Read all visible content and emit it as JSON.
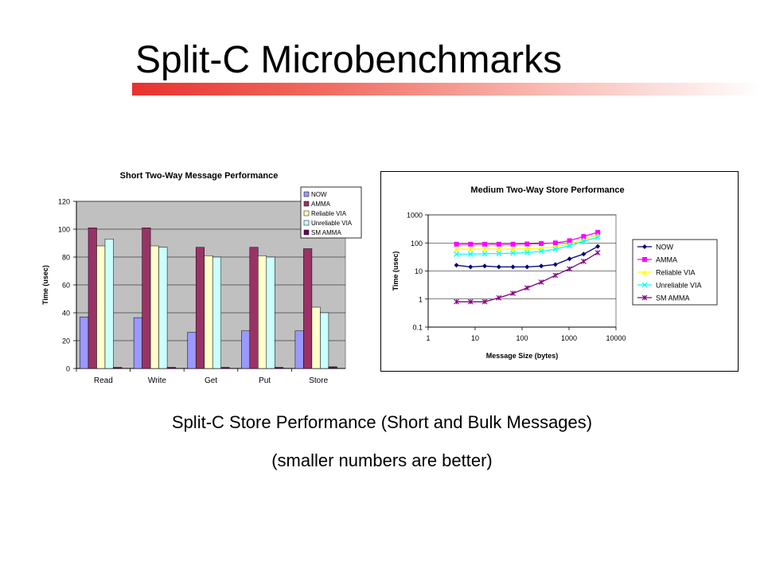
{
  "slide": {
    "title": "Split-C Microbenchmarks",
    "caption_main": "Split-C Store Performance (Short and Bulk Messages)",
    "caption_sub": "(smaller numbers are better)",
    "accent_color": "#e8322f"
  },
  "chart_data": [
    {
      "type": "bar",
      "title": "Short Two-Way Message Performance",
      "xlabel": "",
      "ylabel": "Time (usec)",
      "ylim": [
        0,
        120
      ],
      "yticks": [
        0,
        20,
        40,
        60,
        80,
        100,
        120
      ],
      "grid": true,
      "legend_position": "top-right",
      "categories": [
        "Read",
        "Write",
        "Get",
        "Put",
        "Store"
      ],
      "series": [
        {
          "name": "NOW",
          "color": "#9999ff",
          "values": [
            37,
            36.5,
            26,
            27,
            27
          ]
        },
        {
          "name": "AMMA",
          "color": "#993366",
          "values": [
            101,
            101,
            87,
            87,
            86
          ]
        },
        {
          "name": "Reliable VIA",
          "color": "#ffffcc",
          "values": [
            88,
            88,
            81,
            81,
            44
          ]
        },
        {
          "name": "Unreliable VIA",
          "color": "#ccffff",
          "values": [
            93,
            87,
            80,
            80,
            40
          ]
        },
        {
          "name": "SM AMMA",
          "color": "#660066",
          "values": [
            0.8,
            0.8,
            0.8,
            0.8,
            1.2
          ]
        }
      ]
    },
    {
      "type": "line",
      "title": "Medium Two-Way Store Performance",
      "xlabel": "Message Size (bytes)",
      "ylabel": "Time (usec)",
      "xscale": "log",
      "yscale": "log",
      "xlim": [
        1,
        10000
      ],
      "ylim": [
        0.1,
        1000
      ],
      "xticks": [
        1,
        10,
        100,
        1000,
        10000
      ],
      "yticks": [
        0.1,
        1,
        10,
        100,
        1000
      ],
      "xtick_labels": [
        "1",
        "10",
        "100",
        "1000",
        "10000"
      ],
      "ytick_labels": [
        "0.1",
        "1",
        "10",
        "100",
        "1000"
      ],
      "grid": true,
      "legend_position": "right",
      "x": [
        4,
        8,
        16,
        32,
        64,
        128,
        256,
        512,
        1024,
        2048,
        4096
      ],
      "series": [
        {
          "name": "NOW",
          "color": "#000080",
          "marker": "diamond",
          "values": [
            16,
            14,
            15,
            14,
            14,
            14,
            15,
            17,
            27,
            40,
            75
          ]
        },
        {
          "name": "AMMA",
          "color": "#ff00ff",
          "marker": "square",
          "values": [
            90,
            90,
            90,
            90,
            90,
            92,
            95,
            100,
            120,
            170,
            240
          ]
        },
        {
          "name": "Reliable VIA",
          "color": "#ffff00",
          "marker": "triangle",
          "values": [
            60,
            60,
            60,
            60,
            60,
            62,
            66,
            72,
            90,
            130,
            190
          ]
        },
        {
          "name": "Unreliable VIA",
          "color": "#00ffff",
          "marker": "x",
          "values": [
            40,
            40,
            41,
            42,
            43,
            45,
            50,
            60,
            80,
            115,
            160
          ]
        },
        {
          "name": "SM AMMA",
          "color": "#800080",
          "marker": "star",
          "values": [
            0.8,
            0.8,
            0.8,
            1.1,
            1.6,
            2.5,
            4,
            7,
            12,
            22,
            45
          ]
        }
      ]
    }
  ]
}
